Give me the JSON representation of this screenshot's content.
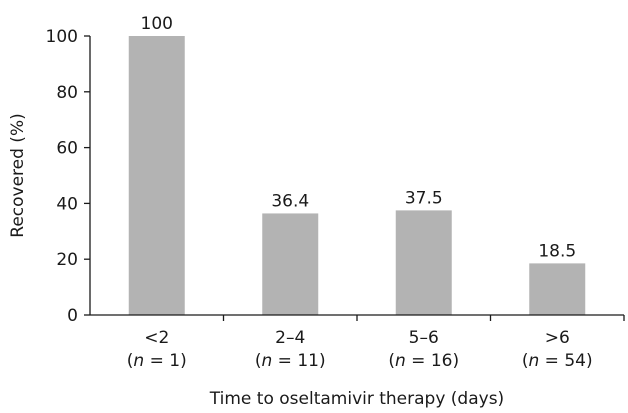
{
  "chart_data": {
    "type": "bar",
    "categories": [
      "<2",
      "2–4",
      "5–6",
      ">6"
    ],
    "category_sublabels": [
      {
        "prefix": "(",
        "n_symbol": "n",
        "eq": " = ",
        "value": "1",
        "suffix": ")"
      },
      {
        "prefix": "(",
        "n_symbol": "n",
        "eq": " = ",
        "value": "11",
        "suffix": ")"
      },
      {
        "prefix": "(",
        "n_symbol": "n",
        "eq": " = ",
        "value": "16",
        "suffix": ")"
      },
      {
        "prefix": "(",
        "n_symbol": "n",
        "eq": " = ",
        "value": "54",
        "suffix": ")"
      }
    ],
    "values": [
      100,
      36.4,
      37.5,
      18.5
    ],
    "value_labels": [
      "100",
      "36.4",
      "37.5",
      "18.5"
    ],
    "xlabel": "Time to oseltamivir therapy (days)",
    "ylabel": "Recovered (%)",
    "ylim": [
      0,
      100
    ],
    "yticks": [
      0,
      20,
      40,
      60,
      80,
      100
    ],
    "ytick_labels": [
      "0",
      "20",
      "40",
      "60",
      "80",
      "100"
    ],
    "grid": false,
    "colors": {
      "bar": "#b3b3b3",
      "axis": "#1a1a1a",
      "text": "#1a1a1a"
    }
  }
}
